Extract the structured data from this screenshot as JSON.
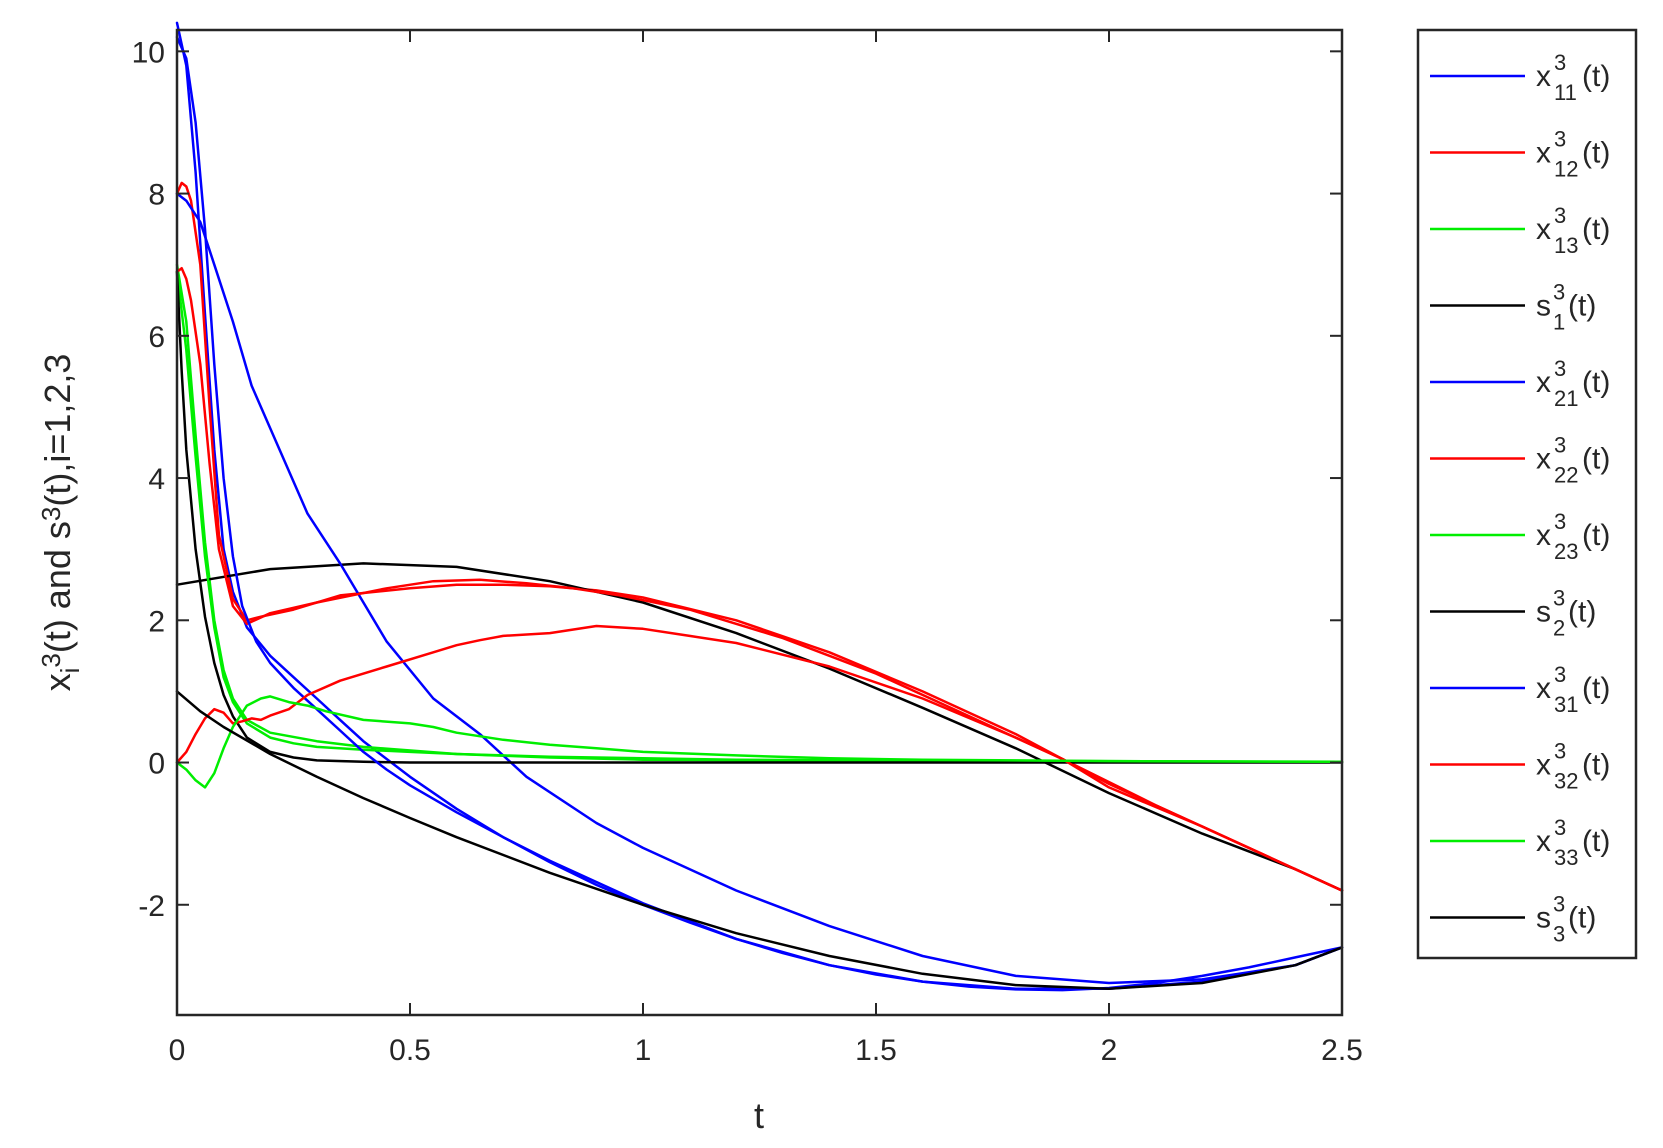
{
  "chart_data": {
    "type": "line",
    "xlabel": "t",
    "ylabel": {
      "parts": [
        {
          "text": "x",
          "role": "base"
        },
        {
          "text": "i",
          "role": "sub"
        },
        {
          "text": "3",
          "role": "sup"
        },
        {
          "text": "(t) and s",
          "role": "base"
        },
        {
          "text": "3",
          "role": "sup"
        },
        {
          "text": "(t),i=1,2,3",
          "role": "base"
        }
      ]
    },
    "xlim": [
      0,
      2.5
    ],
    "ylim": [
      -3.55,
      10.3
    ],
    "x_ticks": [
      {
        "value": 0,
        "label": "0"
      },
      {
        "value": 0.5,
        "label": "0.5"
      },
      {
        "value": 1,
        "label": "1"
      },
      {
        "value": 1.5,
        "label": "1.5"
      },
      {
        "value": 2,
        "label": "2"
      },
      {
        "value": 2.5,
        "label": "2.5"
      }
    ],
    "y_ticks": [
      {
        "value": -2,
        "label": "-2"
      },
      {
        "value": 0,
        "label": "0"
      },
      {
        "value": 2,
        "label": "2"
      },
      {
        "value": 4,
        "label": "4"
      },
      {
        "value": 6,
        "label": "6"
      },
      {
        "value": 8,
        "label": "8"
      },
      {
        "value": 10,
        "label": "10"
      }
    ],
    "grid": false,
    "legend_position": "outside-right",
    "series": [
      {
        "legend": {
          "base": "x",
          "sup": "3",
          "sub": "11",
          "tail": "(t)"
        },
        "color": "#0000ff",
        "x": [
          0,
          0.02,
          0.04,
          0.06,
          0.08,
          0.1,
          0.12,
          0.15,
          0.2,
          0.25,
          0.3,
          0.35,
          0.4,
          0.5,
          0.6,
          0.7,
          0.8,
          0.9,
          1.0,
          1.1,
          1.2,
          1.3,
          1.4,
          1.5,
          1.6,
          1.7,
          1.8,
          1.9,
          2.0,
          2.1,
          2.2,
          2.3,
          2.4,
          2.5
        ],
        "y": [
          10.4,
          9.8,
          8.3,
          6.3,
          4.4,
          3.0,
          2.4,
          1.9,
          1.5,
          1.2,
          0.9,
          0.6,
          0.3,
          -0.2,
          -0.65,
          -1.05,
          -1.4,
          -1.72,
          -2.0,
          -2.25,
          -2.48,
          -2.68,
          -2.85,
          -2.98,
          -3.08,
          -3.15,
          -3.19,
          -3.2,
          -3.17,
          -3.1,
          -3.0,
          -2.88,
          -2.74,
          -2.6
        ]
      },
      {
        "legend": {
          "base": "x",
          "sup": "3",
          "sub": "12",
          "tail": "(t)"
        },
        "color": "#ff0000",
        "x": [
          0,
          0.01,
          0.02,
          0.03,
          0.05,
          0.07,
          0.09,
          0.12,
          0.15,
          0.18,
          0.25,
          0.35,
          0.5,
          0.6,
          0.7,
          0.8,
          0.9,
          1.0,
          1.2,
          1.4,
          1.6,
          1.8,
          2.0,
          2.2,
          2.4,
          2.5
        ],
        "y": [
          8.0,
          8.15,
          8.1,
          7.9,
          7.0,
          5.0,
          3.2,
          2.3,
          2.0,
          2.05,
          2.15,
          2.35,
          2.45,
          2.5,
          2.5,
          2.48,
          2.42,
          2.32,
          2.0,
          1.55,
          1.0,
          0.4,
          -0.3,
          -0.9,
          -1.5,
          -1.8
        ]
      },
      {
        "legend": {
          "base": "x",
          "sup": "3",
          "sub": "13",
          "tail": "(t)"
        },
        "color": "#00ee00",
        "x": [
          0,
          0.02,
          0.04,
          0.06,
          0.08,
          0.1,
          0.12,
          0.15,
          0.2,
          0.3,
          0.4,
          0.6,
          0.8,
          1.0,
          1.5,
          2.0,
          2.5
        ],
        "y": [
          7.0,
          6.2,
          4.6,
          3.1,
          2.0,
          1.3,
          0.9,
          0.6,
          0.42,
          0.3,
          0.22,
          0.12,
          0.07,
          0.04,
          0.02,
          0.01,
          0.01
        ]
      },
      {
        "legend": {
          "base": "s",
          "sup": "3",
          "sub": "1",
          "tail": "(t)"
        },
        "color": "#000000",
        "x": [
          0,
          0.2,
          0.4,
          0.6,
          0.8,
          1.0,
          1.2,
          1.4,
          1.6,
          1.8,
          2.0,
          2.2,
          2.4,
          2.5
        ],
        "y": [
          2.5,
          2.72,
          2.8,
          2.75,
          2.55,
          2.25,
          1.82,
          1.32,
          0.77,
          0.2,
          -0.43,
          -1.0,
          -1.5,
          -1.8
        ]
      },
      {
        "legend": {
          "base": "x",
          "sup": "3",
          "sub": "21",
          "tail": "(t)"
        },
        "color": "#0000ff",
        "x": [
          0,
          0.02,
          0.05,
          0.08,
          0.12,
          0.16,
          0.2,
          0.28,
          0.35,
          0.45,
          0.55,
          0.65,
          0.75,
          0.9,
          1.0,
          1.2,
          1.4,
          1.6,
          1.8,
          2.0,
          2.2,
          2.4,
          2.5
        ],
        "y": [
          8.0,
          7.9,
          7.6,
          7.0,
          6.2,
          5.3,
          4.7,
          3.5,
          2.8,
          1.7,
          0.9,
          0.4,
          -0.2,
          -0.85,
          -1.2,
          -1.8,
          -2.3,
          -2.72,
          -3.0,
          -3.1,
          -3.05,
          -2.85,
          -2.6
        ]
      },
      {
        "legend": {
          "base": "x",
          "sup": "3",
          "sub": "22",
          "tail": "(t)"
        },
        "color": "#ff0000",
        "x": [
          0,
          0.01,
          0.02,
          0.03,
          0.05,
          0.07,
          0.09,
          0.12,
          0.15,
          0.2,
          0.3,
          0.45,
          0.55,
          0.65,
          0.75,
          0.85,
          0.95,
          1.1,
          1.3,
          1.5,
          1.7,
          1.9,
          2.1,
          2.3,
          2.5
        ],
        "y": [
          6.9,
          6.95,
          6.8,
          6.5,
          5.6,
          4.2,
          3.0,
          2.2,
          1.95,
          2.1,
          2.25,
          2.45,
          2.55,
          2.57,
          2.52,
          2.45,
          2.35,
          2.15,
          1.75,
          1.25,
          0.65,
          0.05,
          -0.6,
          -1.2,
          -1.8
        ]
      },
      {
        "legend": {
          "base": "x",
          "sup": "3",
          "sub": "23",
          "tail": "(t)"
        },
        "color": "#00ee00",
        "x": [
          0,
          0.02,
          0.04,
          0.06,
          0.08,
          0.1,
          0.12,
          0.15,
          0.2,
          0.25,
          0.3,
          0.4,
          0.5,
          0.6,
          0.7,
          0.8,
          1.0,
          1.2,
          1.5,
          2.0,
          2.5
        ],
        "y": [
          6.9,
          5.8,
          4.3,
          2.9,
          1.9,
          1.2,
          0.85,
          0.55,
          0.35,
          0.27,
          0.22,
          0.18,
          0.15,
          0.12,
          0.1,
          0.08,
          0.06,
          0.04,
          0.03,
          0.02,
          0.01
        ]
      },
      {
        "legend": {
          "base": "s",
          "sup": "3",
          "sub": "2",
          "tail": "(t)"
        },
        "color": "#000000",
        "x": [
          0,
          0.01,
          0.02,
          0.04,
          0.06,
          0.08,
          0.1,
          0.12,
          0.15,
          0.2,
          0.25,
          0.3,
          0.4,
          0.5,
          0.7,
          1.0,
          1.5,
          2.0,
          2.5
        ],
        "y": [
          6.9,
          5.5,
          4.4,
          3.0,
          2.05,
          1.4,
          0.95,
          0.65,
          0.35,
          0.15,
          0.07,
          0.03,
          0.01,
          0,
          0,
          0,
          0,
          0,
          0
        ]
      },
      {
        "legend": {
          "base": "x",
          "sup": "3",
          "sub": "31",
          "tail": "(t)"
        },
        "color": "#0000ff",
        "x": [
          0,
          0.02,
          0.04,
          0.06,
          0.08,
          0.1,
          0.12,
          0.14,
          0.17,
          0.2,
          0.25,
          0.3,
          0.35,
          0.4,
          0.45,
          0.5,
          0.6,
          0.7,
          0.8,
          0.9,
          1.0,
          1.2,
          1.4,
          1.6,
          1.8,
          2.0,
          2.2,
          2.4,
          2.5
        ],
        "y": [
          10.2,
          9.9,
          9.0,
          7.5,
          5.6,
          4.0,
          2.9,
          2.2,
          1.7,
          1.4,
          1.05,
          0.75,
          0.45,
          0.15,
          -0.1,
          -0.32,
          -0.7,
          -1.05,
          -1.38,
          -1.68,
          -1.98,
          -2.48,
          -2.85,
          -3.08,
          -3.18,
          -3.18,
          -3.08,
          -2.85,
          -2.6
        ]
      },
      {
        "legend": {
          "base": "x",
          "sup": "3",
          "sub": "32",
          "tail": "(t)"
        },
        "color": "#ff0000",
        "x": [
          0,
          0.02,
          0.04,
          0.06,
          0.08,
          0.1,
          0.12,
          0.14,
          0.16,
          0.18,
          0.2,
          0.24,
          0.28,
          0.35,
          0.45,
          0.55,
          0.6,
          0.65,
          0.7,
          0.8,
          0.9,
          1.0,
          1.1,
          1.2,
          1.4,
          1.6,
          1.8,
          1.9,
          2.0,
          2.2,
          2.4,
          2.5
        ],
        "y": [
          0,
          0.15,
          0.4,
          0.62,
          0.75,
          0.7,
          0.55,
          0.58,
          0.62,
          0.6,
          0.66,
          0.75,
          0.95,
          1.15,
          1.35,
          1.55,
          1.65,
          1.72,
          1.78,
          1.82,
          1.92,
          1.88,
          1.78,
          1.68,
          1.35,
          0.9,
          0.35,
          0.05,
          -0.35,
          -0.9,
          -1.5,
          -1.8
        ]
      },
      {
        "legend": {
          "base": "x",
          "sup": "3",
          "sub": "33",
          "tail": "(t)"
        },
        "color": "#00ee00",
        "x": [
          0,
          0.02,
          0.04,
          0.06,
          0.08,
          0.1,
          0.12,
          0.15,
          0.18,
          0.2,
          0.24,
          0.28,
          0.32,
          0.4,
          0.5,
          0.55,
          0.6,
          0.7,
          0.8,
          0.9,
          1.0,
          1.2,
          1.4,
          1.6,
          2.0,
          2.5
        ],
        "y": [
          0,
          -0.1,
          -0.25,
          -0.35,
          -0.15,
          0.2,
          0.5,
          0.8,
          0.9,
          0.93,
          0.85,
          0.8,
          0.72,
          0.6,
          0.55,
          0.5,
          0.42,
          0.32,
          0.25,
          0.2,
          0.15,
          0.1,
          0.06,
          0.04,
          0.02,
          0.01
        ]
      },
      {
        "legend": {
          "base": "s",
          "sup": "3",
          "sub": "3",
          "tail": "(t)"
        },
        "color": "#000000",
        "x": [
          0,
          0.05,
          0.1,
          0.2,
          0.3,
          0.4,
          0.5,
          0.6,
          0.8,
          1.0,
          1.2,
          1.4,
          1.6,
          1.8,
          2.0,
          2.2,
          2.4,
          2.5
        ],
        "y": [
          1.0,
          0.72,
          0.5,
          0.12,
          -0.2,
          -0.5,
          -0.78,
          -1.05,
          -1.55,
          -2.0,
          -2.4,
          -2.72,
          -2.97,
          -3.13,
          -3.18,
          -3.1,
          -2.85,
          -2.6
        ]
      }
    ]
  }
}
